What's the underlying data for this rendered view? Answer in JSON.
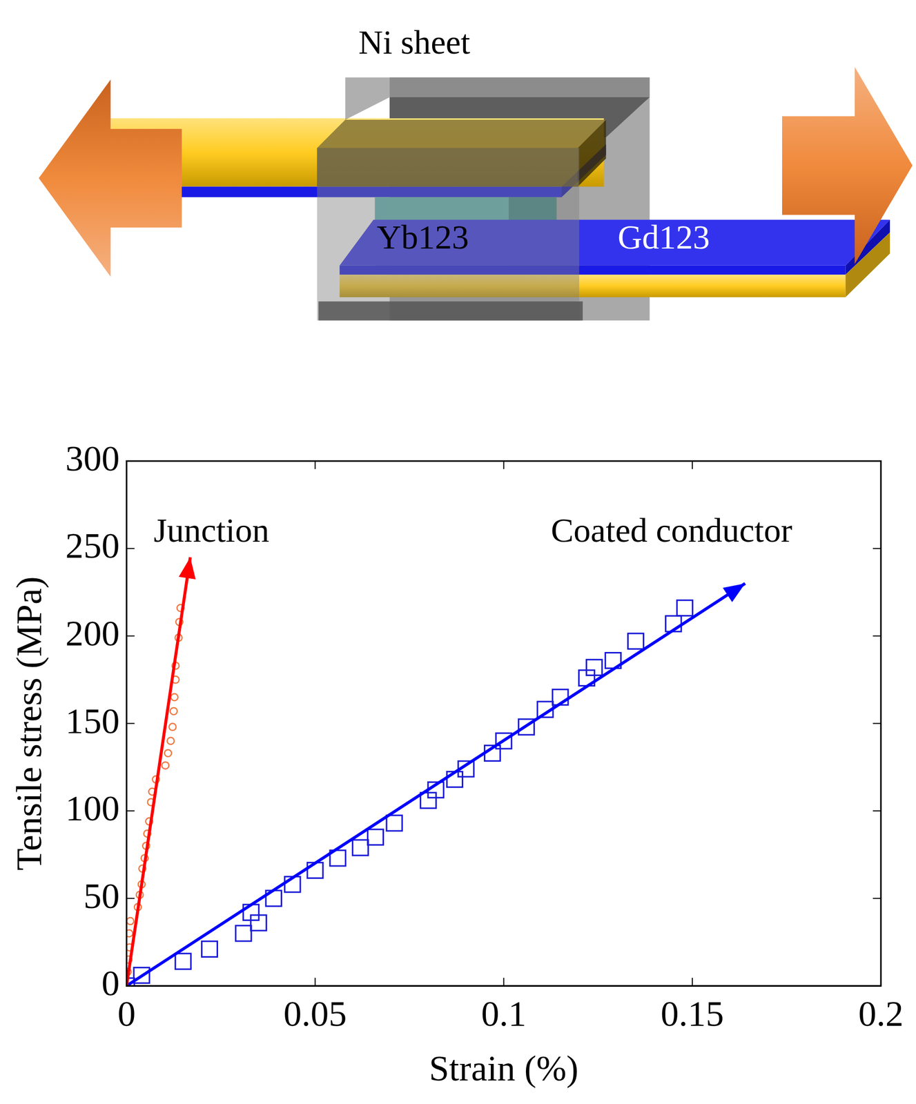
{
  "diagram": {
    "labels": {
      "sheet": "Ni sheet",
      "junction_material": "Yb123",
      "conductor_layer": "Gd123"
    }
  },
  "chart_data": {
    "type": "scatter",
    "x_label": "Strain (%)",
    "y_label": "Tensile stress (MPa)",
    "xlim": [
      0,
      0.2
    ],
    "xticks": [
      0,
      0.05,
      0.1,
      0.15,
      0.2
    ],
    "ylim": [
      0,
      300
    ],
    "yticks": [
      0,
      50,
      100,
      150,
      200,
      250,
      300
    ],
    "grid": false,
    "series": [
      {
        "name": "Junction",
        "color": "#f07840",
        "marker": "circle",
        "x": [
          0,
          0.0003,
          0.0005,
          0.0008,
          0.0007,
          0.001,
          0.003,
          0.0035,
          0.004,
          0.0042,
          0.0048,
          0.0052,
          0.0055,
          0.006,
          0.0065,
          0.0068,
          0.0078,
          0.0103,
          0.011,
          0.0117,
          0.0122,
          0.0125,
          0.0127,
          0.013,
          0.013,
          0.0138,
          0.014,
          0.0143
        ],
        "values": [
          0,
          8,
          15,
          22,
          30,
          37,
          45,
          52,
          58,
          67,
          73,
          80,
          87,
          94,
          105,
          111,
          118,
          126,
          133,
          140,
          148,
          157,
          165,
          175,
          183,
          199,
          208,
          216
        ],
        "fit": {
          "color": "#ff0000",
          "line_style": "arrow",
          "x": [
            0,
            0.0169
          ],
          "values": [
            0,
            245
          ]
        }
      },
      {
        "name": "Coated conductor",
        "color": "#1a1ad8",
        "marker": "square",
        "x": [
          0,
          0.004,
          0.015,
          0.022,
          0.031,
          0.033,
          0.035,
          0.039,
          0.044,
          0.05,
          0.056,
          0.062,
          0.066,
          0.071,
          0.08,
          0.082,
          0.087,
          0.09,
          0.097,
          0.1,
          0.106,
          0.111,
          0.115,
          0.122,
          0.124,
          0.129,
          0.135,
          0.145,
          0.148
        ],
        "values": [
          0,
          6,
          14,
          21,
          30,
          42,
          36,
          50,
          58,
          66,
          73,
          79,
          85,
          93,
          106,
          112,
          118,
          124,
          133,
          140,
          148,
          158,
          165,
          176,
          182,
          186,
          197,
          207,
          216
        ],
        "fit": {
          "color": "#0000ff",
          "line_style": "arrow",
          "x": [
            0,
            0.164
          ],
          "values": [
            0,
            230
          ]
        }
      }
    ],
    "annotations": [
      {
        "text": "Junction",
        "x": 0.0072,
        "y": 259
      },
      {
        "text": "Coated conductor",
        "x": 0.1125,
        "y": 259
      }
    ]
  }
}
